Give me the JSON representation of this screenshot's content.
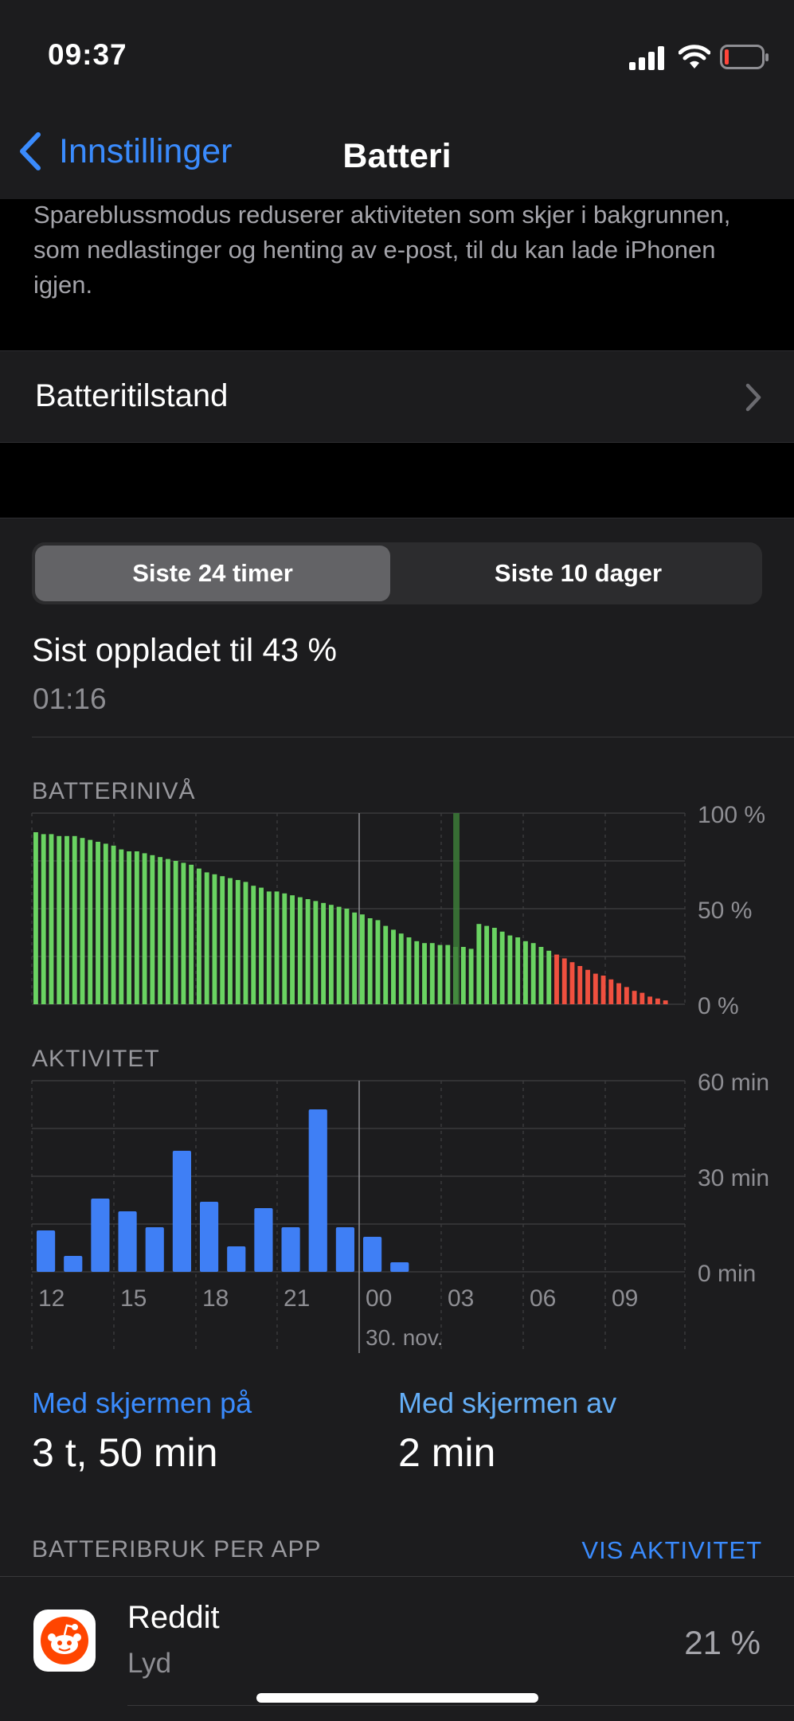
{
  "status_bar": {
    "time": "09:37"
  },
  "nav": {
    "back_label": "Innstillinger",
    "title": "Batteri"
  },
  "intro_text": "Spareblussmodus reduserer aktiviteten som skjer i bakgrunnen, som nedlastinger og henting av e-post, til du kan lade iPhonen igjen.",
  "battery_health": {
    "label": "Batteritilstand"
  },
  "segments": [
    {
      "label": "Siste 24 timer",
      "selected": true
    },
    {
      "label": "Siste 10 dager",
      "selected": false
    }
  ],
  "last_charged": {
    "text": "Sist oppladet til 43 %",
    "time": "01:16"
  },
  "colors": {
    "accent_blue": "#3a8bfd",
    "battery_green": "#6ad362",
    "battery_red": "#f0503f",
    "activity_blue": "#3f7ff5"
  },
  "chart_data": [
    {
      "type": "bar",
      "title": "BATTERINIVÅ",
      "y_tick_labels": [
        "100 %",
        "50 %",
        "0 %"
      ],
      "ylim": [
        0,
        100
      ],
      "x_tick_labels": [
        "12",
        "15",
        "18",
        "21",
        "00",
        "03",
        "06",
        "09"
      ],
      "charging_marker_index": 54,
      "values": [
        90,
        89,
        89,
        88,
        88,
        88,
        87,
        86,
        85,
        84,
        83,
        81,
        80,
        80,
        79,
        78,
        77,
        76,
        75,
        74,
        73,
        71,
        69,
        68,
        67,
        66,
        65,
        64,
        62,
        61,
        59,
        59,
        58,
        57,
        56,
        55,
        54,
        53,
        52,
        51,
        50,
        48,
        47,
        45,
        44,
        41,
        39,
        37,
        35,
        33,
        32,
        32,
        31,
        31,
        30,
        30,
        29,
        42,
        41,
        40,
        38,
        36,
        35,
        33,
        32,
        30,
        28,
        26,
        24,
        22,
        20,
        18,
        16,
        15,
        13,
        11,
        9,
        7,
        6,
        4,
        3,
        2
      ],
      "segments_colors": {
        "low_start_index": 67
      }
    },
    {
      "type": "bar",
      "title": "AKTIVITET",
      "y_tick_labels": [
        "60 min",
        "30 min",
        "0 min"
      ],
      "ylim": [
        0,
        60
      ],
      "x_tick_labels": [
        "12",
        "15",
        "18",
        "21",
        "00",
        "03",
        "06",
        "09"
      ],
      "date_label": "30. nov.",
      "values": [
        13,
        5,
        23,
        19,
        14,
        38,
        22,
        8,
        20,
        14,
        51,
        14,
        11,
        3,
        0,
        0,
        0,
        0,
        0,
        0,
        0,
        0,
        0,
        0
      ]
    }
  ],
  "screen_on": {
    "label": "Med skjermen på",
    "value": "3 t, 50 min"
  },
  "screen_off": {
    "label": "Med skjermen av",
    "value": "2 min"
  },
  "usage_header": "BATTERIBRUK PER APP",
  "show_activity": "VIS AKTIVITET",
  "apps": [
    {
      "name": "Reddit",
      "sub": "Lyd",
      "percent": "21 %",
      "icon": "reddit-icon"
    }
  ]
}
